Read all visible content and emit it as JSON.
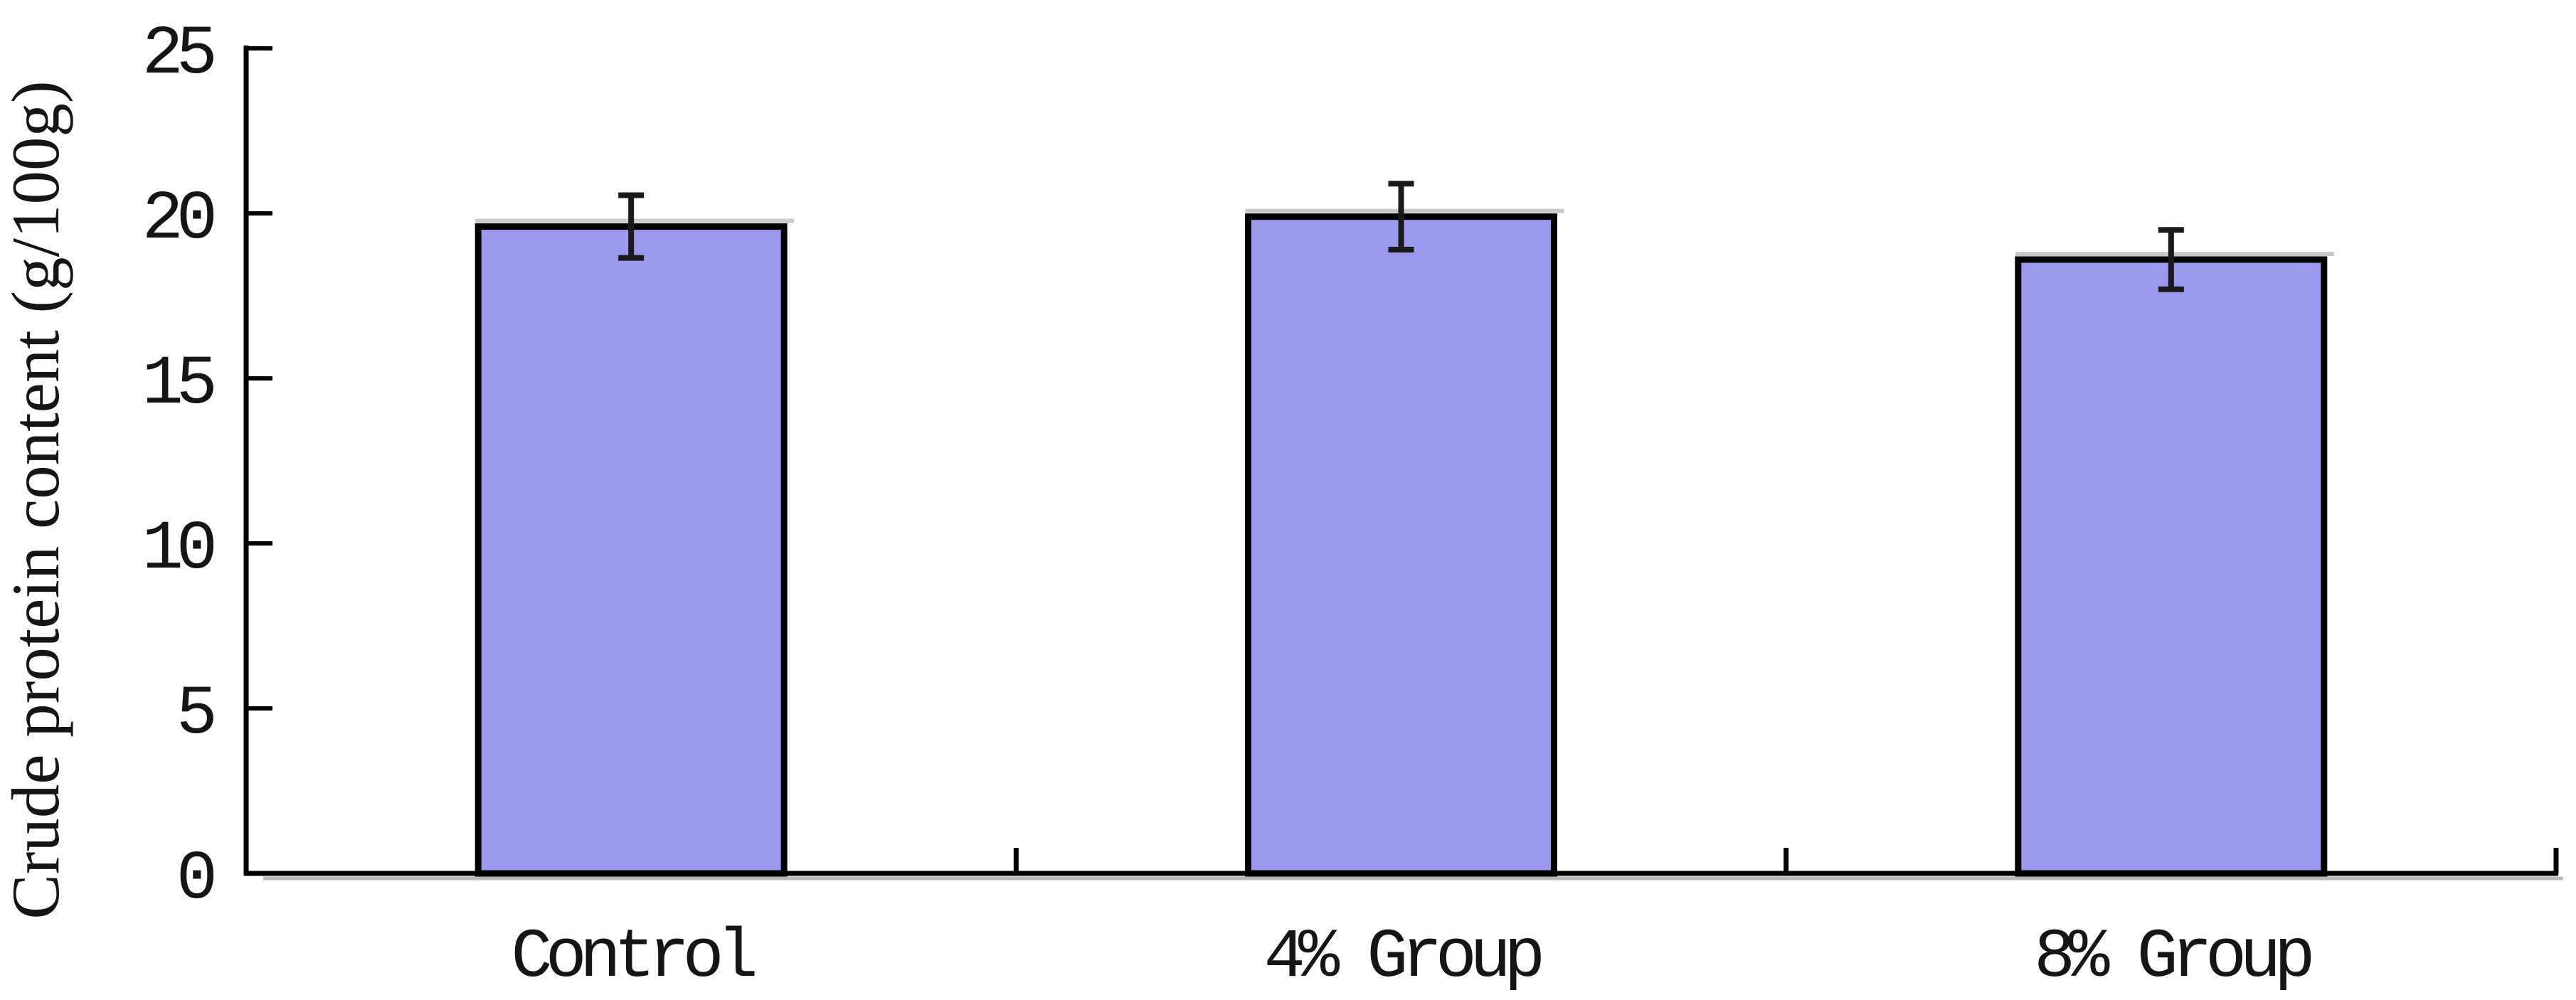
{
  "chart_data": {
    "type": "bar",
    "title": "",
    "ylabel": "Crude protein content (g/100g)",
    "xlabel": "",
    "categories": [
      "Control",
      "4% Group",
      "8% Group"
    ],
    "values": [
      19.6,
      19.9,
      18.6
    ],
    "errors": [
      0.95,
      1.0,
      0.9
    ],
    "yticks": [
      0,
      5,
      10,
      15,
      20,
      25
    ],
    "ylim": [
      0,
      25
    ],
    "grid": false,
    "legend": false,
    "error_bars": true,
    "colors": {
      "bar_fill": "#9B99EE",
      "bar_border": "#000000",
      "error_bar": "#1A1A1A",
      "axis": "#000000",
      "axis_shadow": "#B9B9B9",
      "bar_halo": "#C9C9C9",
      "text": "#151515",
      "background": "#FFFFFF"
    }
  }
}
